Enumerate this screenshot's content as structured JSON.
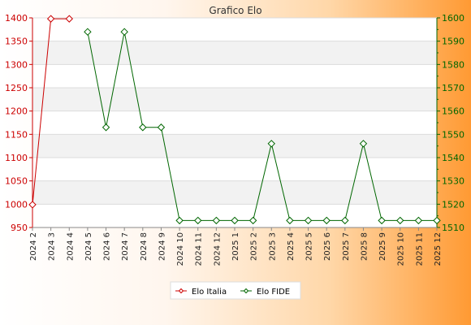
{
  "chart_data": {
    "type": "line",
    "title": "Grafico Elo",
    "categories": [
      "2024 2",
      "2024 3",
      "2024 4",
      "2024 5",
      "2024 6",
      "2024 7",
      "2024 8",
      "2024 9",
      "2024 10",
      "2024 11",
      "2024 12",
      "2025 1",
      "2025 2",
      "2025 3",
      "2025 4",
      "2025 5",
      "2025 6",
      "2025 7",
      "2025 8",
      "2025 9",
      "2025 10",
      "2025 11",
      "2025 12"
    ],
    "y_left": {
      "min": 950,
      "max": 1400,
      "step": 50,
      "color": "#cc0000"
    },
    "y_right": {
      "min": 1510,
      "max": 1600,
      "step": 10,
      "color": "#006600"
    },
    "grid": true,
    "legend_position": "bottom-center",
    "series": [
      {
        "name": "Elo Italia",
        "axis": "left",
        "color": "#cc0000",
        "values": [
          999,
          1398,
          1398,
          null,
          null,
          null,
          null,
          null,
          null,
          null,
          null,
          null,
          null,
          null,
          null,
          null,
          null,
          null,
          null,
          null,
          null,
          null,
          null
        ]
      },
      {
        "name": "Elo FIDE",
        "axis": "right",
        "color": "#006600",
        "values": [
          null,
          null,
          null,
          1594,
          1553,
          1594,
          1553,
          1553,
          1513,
          1513,
          1513,
          1513,
          1513,
          1546,
          1513,
          1513,
          1513,
          1513,
          1546,
          1513,
          1513,
          1513,
          1513
        ]
      }
    ]
  }
}
